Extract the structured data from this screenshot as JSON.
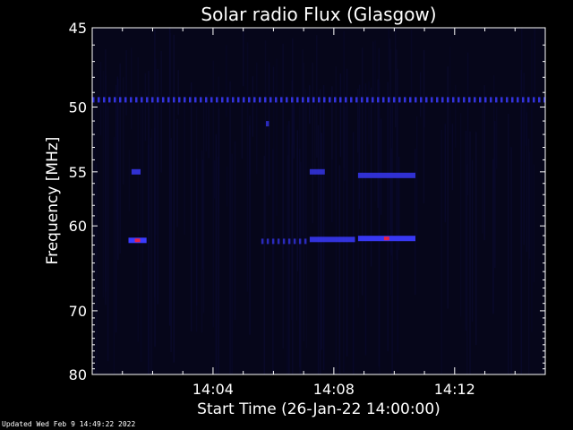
{
  "footer": {
    "updated": "Updated Wed Feb  9 14:49:22 2022"
  },
  "chart_data": {
    "type": "heatmap",
    "title": "Solar radio Flux (Glasgow)",
    "xlabel": "Start Time (26-Jan-22 14:00:00)",
    "ylabel": "Frequency [MHz]",
    "x_unit": "minutes after 14:00:00",
    "xlim": [
      0,
      15
    ],
    "x_ticks": [
      4,
      8,
      12
    ],
    "x_tick_labels": [
      "14:04",
      "14:08",
      "14:12"
    ],
    "ylim": [
      45,
      80
    ],
    "y_scale": "reciprocal",
    "y_inverted": true,
    "y_ticks": [
      45,
      50,
      55,
      60,
      70,
      80
    ],
    "y_tick_labels": [
      "45",
      "50",
      "55",
      "60",
      "70",
      "80"
    ],
    "grid": false,
    "colors": {
      "background": "#000000",
      "plot_bg": "#06061a",
      "low": "#0a0a2e",
      "high": "#3b3bff",
      "peak": "#ff2030",
      "axes": "#ffffff"
    },
    "features": [
      {
        "freq_mhz": 49.5,
        "x_start": 0.0,
        "x_end": 15.0,
        "intensity": 0.85,
        "pattern": "dashed"
      },
      {
        "freq_mhz": 51.2,
        "x_start": 5.75,
        "x_end": 5.85,
        "intensity": 0.7,
        "pattern": "solid"
      },
      {
        "freq_mhz": 55.0,
        "x_start": 1.3,
        "x_end": 1.6,
        "intensity": 0.8,
        "pattern": "solid"
      },
      {
        "freq_mhz": 55.0,
        "x_start": 7.2,
        "x_end": 7.7,
        "intensity": 0.75,
        "pattern": "solid"
      },
      {
        "freq_mhz": 55.3,
        "x_start": 8.8,
        "x_end": 10.7,
        "intensity": 0.8,
        "pattern": "solid"
      },
      {
        "freq_mhz": 61.5,
        "x_start": 1.2,
        "x_end": 1.8,
        "intensity": 1.0,
        "pattern": "solid"
      },
      {
        "freq_mhz": 61.6,
        "x_start": 5.6,
        "x_end": 7.2,
        "intensity": 0.7,
        "pattern": "dashed"
      },
      {
        "freq_mhz": 61.4,
        "x_start": 7.2,
        "x_end": 8.7,
        "intensity": 0.85,
        "pattern": "solid"
      },
      {
        "freq_mhz": 61.3,
        "x_start": 8.8,
        "x_end": 10.7,
        "intensity": 0.95,
        "pattern": "solid"
      }
    ]
  }
}
